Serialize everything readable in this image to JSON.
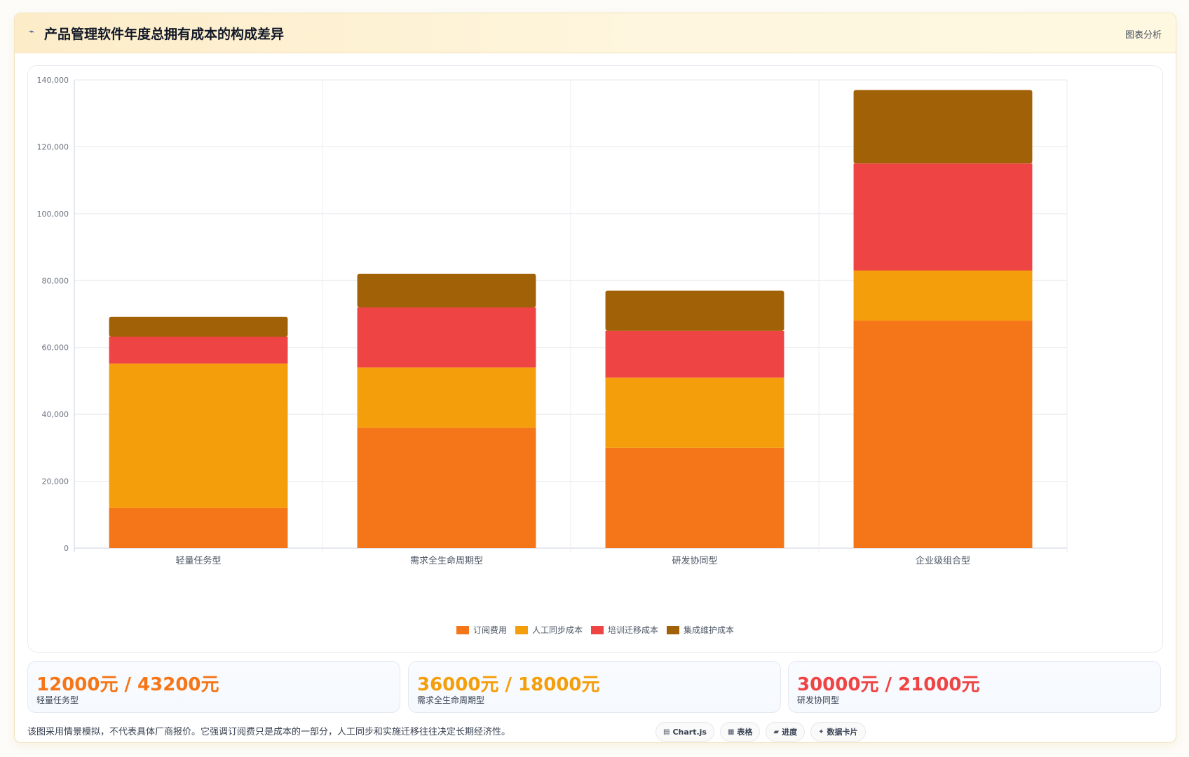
{
  "header": {
    "icon": "chart-line-icon",
    "title": "产品管理软件年度总拥有成本的构成差异",
    "analysis_label": "图表分析"
  },
  "colors": {
    "subscription": "#f57618",
    "manual_sync": "#f59e0b",
    "training": "#ef4444",
    "integration": "#a16207"
  },
  "chart_data": {
    "type": "bar",
    "stacked": true,
    "categories": [
      "轻量任务型",
      "需求全生命周期型",
      "研发协同型",
      "企业级组合型"
    ],
    "series": [
      {
        "name": "订阅费用",
        "color": "#f57618",
        "values": [
          12000,
          36000,
          30000,
          68000
        ]
      },
      {
        "name": "人工同步成本",
        "color": "#f59e0b",
        "values": [
          43200,
          18000,
          21000,
          15000
        ]
      },
      {
        "name": "培训迁移成本",
        "color": "#ef4444",
        "values": [
          8000,
          18000,
          14000,
          32000
        ]
      },
      {
        "name": "集成维护成本",
        "color": "#a16207",
        "values": [
          6000,
          10000,
          12000,
          22000
        ]
      }
    ],
    "ylim": [
      0,
      140000
    ],
    "yticks": [
      0,
      20000,
      40000,
      60000,
      80000,
      100000,
      120000,
      140000
    ],
    "ytick_labels": [
      "0",
      "20,000",
      "40,000",
      "60,000",
      "80,000",
      "100,000",
      "120,000",
      "140,000"
    ],
    "grid": true,
    "legend_position": "bottom"
  },
  "stats": [
    {
      "value": "12000元 / 43200元",
      "label": "轻量任务型",
      "color": "#f57618"
    },
    {
      "value": "36000元 / 18000元",
      "label": "需求全生命周期型",
      "color": "#f59e0b"
    },
    {
      "value": "30000元 / 21000元",
      "label": "研发协同型",
      "color": "#ef4444"
    }
  ],
  "footnote": "该图采用情景模拟，不代表具体厂商报价。它强调订阅费只是成本的一部分，人工同步和实施迁移往往决定长期经济性。",
  "chips": [
    {
      "icon": "chart-icon",
      "glyph": "▤",
      "label": "Chart.js"
    },
    {
      "icon": "table-icon",
      "glyph": "▦",
      "label": "表格"
    },
    {
      "icon": "progress-icon",
      "glyph": "▰",
      "label": "进度"
    },
    {
      "icon": "sparkle-icon",
      "glyph": "✦",
      "label": "数据卡片"
    }
  ]
}
